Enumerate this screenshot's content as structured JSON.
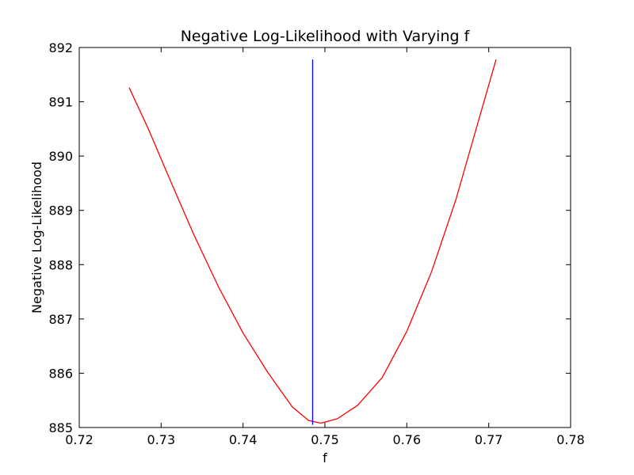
{
  "chart_data": {
    "type": "line",
    "title": "Negative Log-Likelihood with Varying f",
    "xlabel": "f",
    "ylabel": "Negative Log-Likelihood",
    "xlim": [
      0.72,
      0.78
    ],
    "ylim": [
      885,
      892
    ],
    "xticks": [
      0.72,
      0.73,
      0.74,
      0.75,
      0.76,
      0.77,
      0.78
    ],
    "xtick_labels": [
      "0.72",
      "0.73",
      "0.74",
      "0.75",
      "0.76",
      "0.77",
      "0.78"
    ],
    "yticks": [
      885,
      886,
      887,
      888,
      889,
      890,
      891,
      892
    ],
    "ytick_labels": [
      "885",
      "886",
      "887",
      "888",
      "889",
      "890",
      "891",
      "892"
    ],
    "grid": false,
    "legend": "none",
    "series": [
      {
        "color": "#ff0000",
        "x": [
          0.7261,
          0.7285,
          0.731,
          0.734,
          0.737,
          0.74,
          0.743,
          0.746,
          0.748,
          0.7495,
          0.7515,
          0.754,
          0.757,
          0.76,
          0.763,
          0.766,
          0.769,
          0.7709
        ],
        "y": [
          891.26,
          890.48,
          889.59,
          888.55,
          887.59,
          886.74,
          886.02,
          885.38,
          885.13,
          885.08,
          885.16,
          885.41,
          885.92,
          886.77,
          887.86,
          889.2,
          890.78,
          891.78
        ]
      },
      {
        "color": "#0000ff",
        "x": [
          0.7485,
          0.7485
        ],
        "y": [
          885.05,
          891.78
        ]
      }
    ]
  }
}
